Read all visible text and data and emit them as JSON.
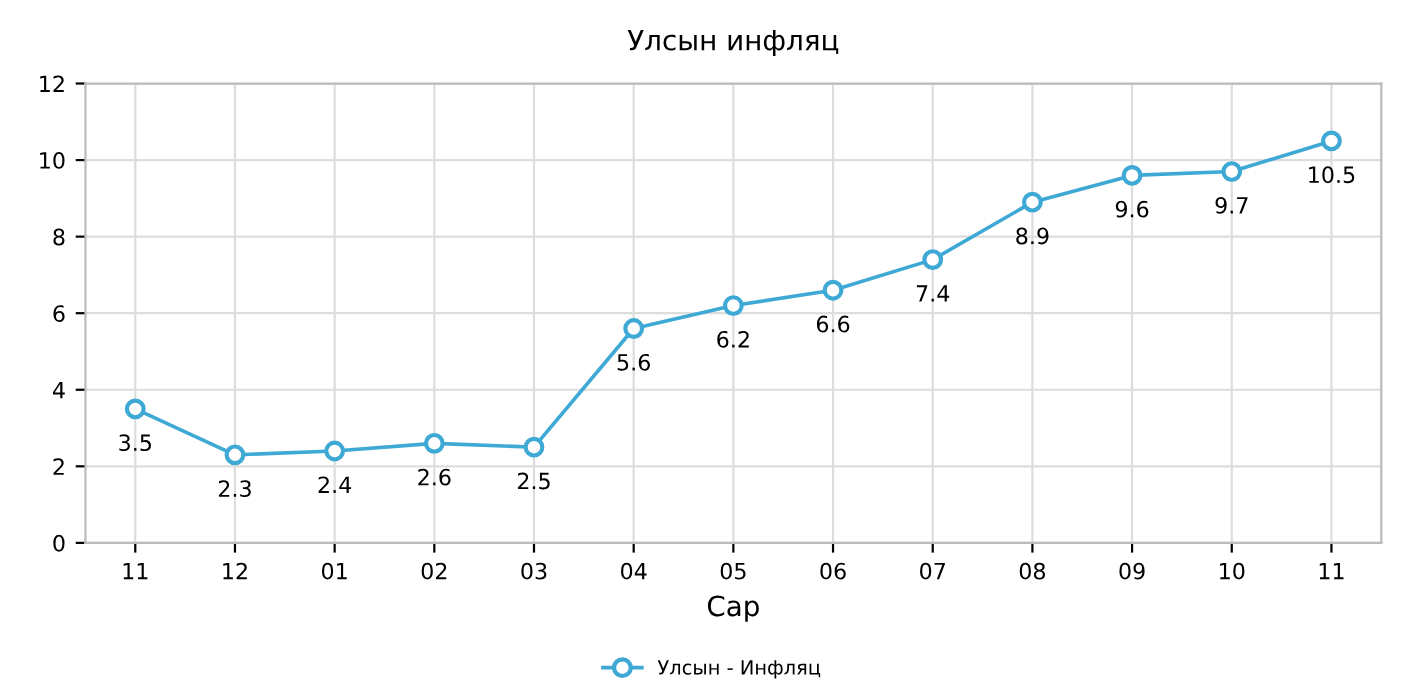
{
  "chart_data": {
    "type": "line",
    "title": "Улсын инфляц",
    "xlabel": "Сар",
    "categories": [
      "11",
      "12",
      "01",
      "02",
      "03",
      "04",
      "05",
      "06",
      "07",
      "08",
      "09",
      "10",
      "11"
    ],
    "series": [
      {
        "name": "Улсын - Инфляц",
        "color": "#3fa9d6",
        "values": [
          3.5,
          2.3,
          2.4,
          2.6,
          2.5,
          5.6,
          6.2,
          6.6,
          7.4,
          8.9,
          9.6,
          9.7,
          10.5
        ]
      }
    ],
    "ylim": [
      0,
      12
    ],
    "yticks": [
      0,
      2,
      4,
      6,
      8,
      10,
      12
    ],
    "grid": true,
    "legend": "bottom",
    "marker": "circle",
    "data_labels": true
  }
}
